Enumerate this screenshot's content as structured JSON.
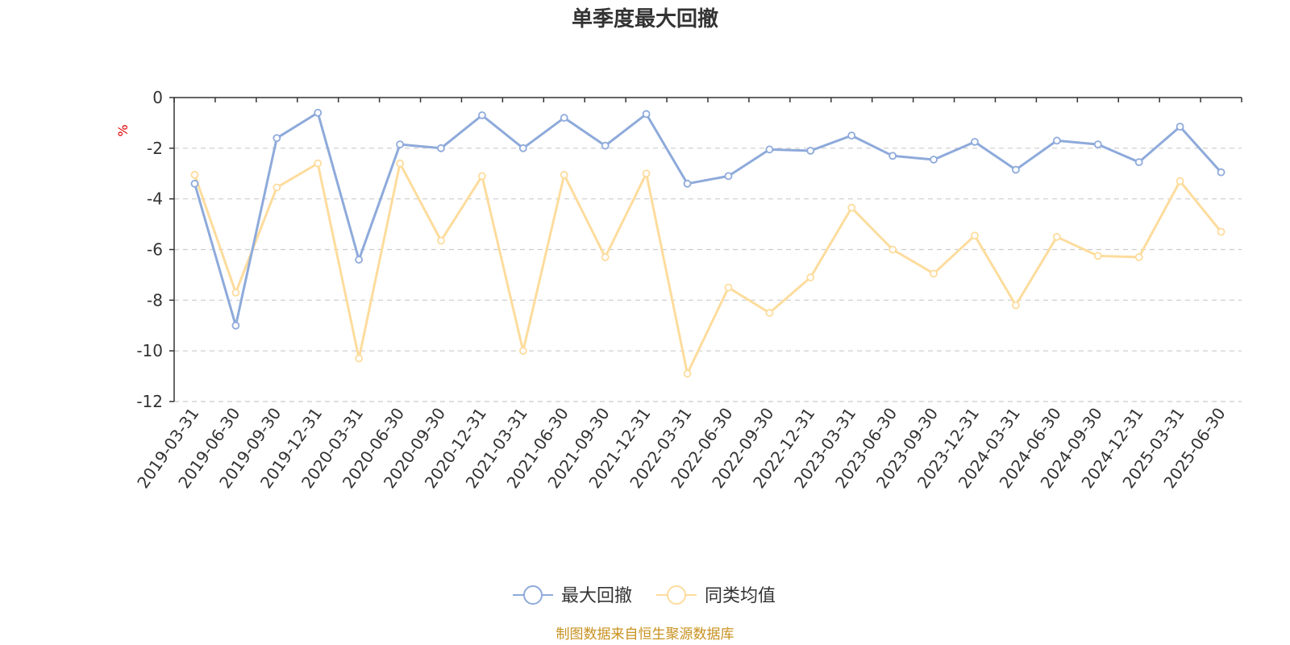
{
  "chart_data": {
    "type": "line",
    "title": "单季度最大回撤",
    "ylabel": "%",
    "xlabel": "",
    "ylim": [
      -12,
      0
    ],
    "yticks": [
      0,
      -2,
      -4,
      -6,
      -8,
      -10,
      -12
    ],
    "grid": true,
    "legend_position": "bottom-center",
    "categories": [
      "2019-03-31",
      "2019-06-30",
      "2019-09-30",
      "2019-12-31",
      "2020-03-31",
      "2020-06-30",
      "2020-09-30",
      "2020-12-31",
      "2021-03-31",
      "2021-06-30",
      "2021-09-30",
      "2021-12-31",
      "2022-03-31",
      "2022-06-30",
      "2022-09-30",
      "2022-12-31",
      "2023-03-31",
      "2023-06-30",
      "2023-09-30",
      "2023-12-31",
      "2024-03-31",
      "2024-06-30",
      "2024-09-30",
      "2024-12-31",
      "2025-03-31",
      "2025-06-30"
    ],
    "series": [
      {
        "name": "最大回撤",
        "color": "#8eaadb",
        "values": [
          -3.4,
          -9.0,
          -1.6,
          -0.6,
          -6.4,
          -1.85,
          -2.0,
          -0.7,
          -2.0,
          -0.8,
          -1.9,
          -0.65,
          -3.4,
          -3.1,
          -2.05,
          -2.1,
          -1.5,
          -2.3,
          -2.45,
          -1.75,
          -2.85,
          -1.7,
          -1.85,
          -2.55,
          -1.15,
          -2.95
        ]
      },
      {
        "name": "同类均值",
        "color": "#fddc9d",
        "values": [
          -3.05,
          -7.7,
          -3.55,
          -2.6,
          -10.3,
          -2.6,
          -5.65,
          -3.1,
          -10.0,
          -3.05,
          -6.3,
          -3.0,
          -10.9,
          -7.5,
          -8.5,
          -7.1,
          -4.35,
          -6.0,
          -6.95,
          -5.45,
          -8.2,
          -5.5,
          -6.25,
          -6.3,
          -3.3,
          -5.3
        ]
      }
    ],
    "source": "制图数据来自恒生聚源数据库"
  }
}
